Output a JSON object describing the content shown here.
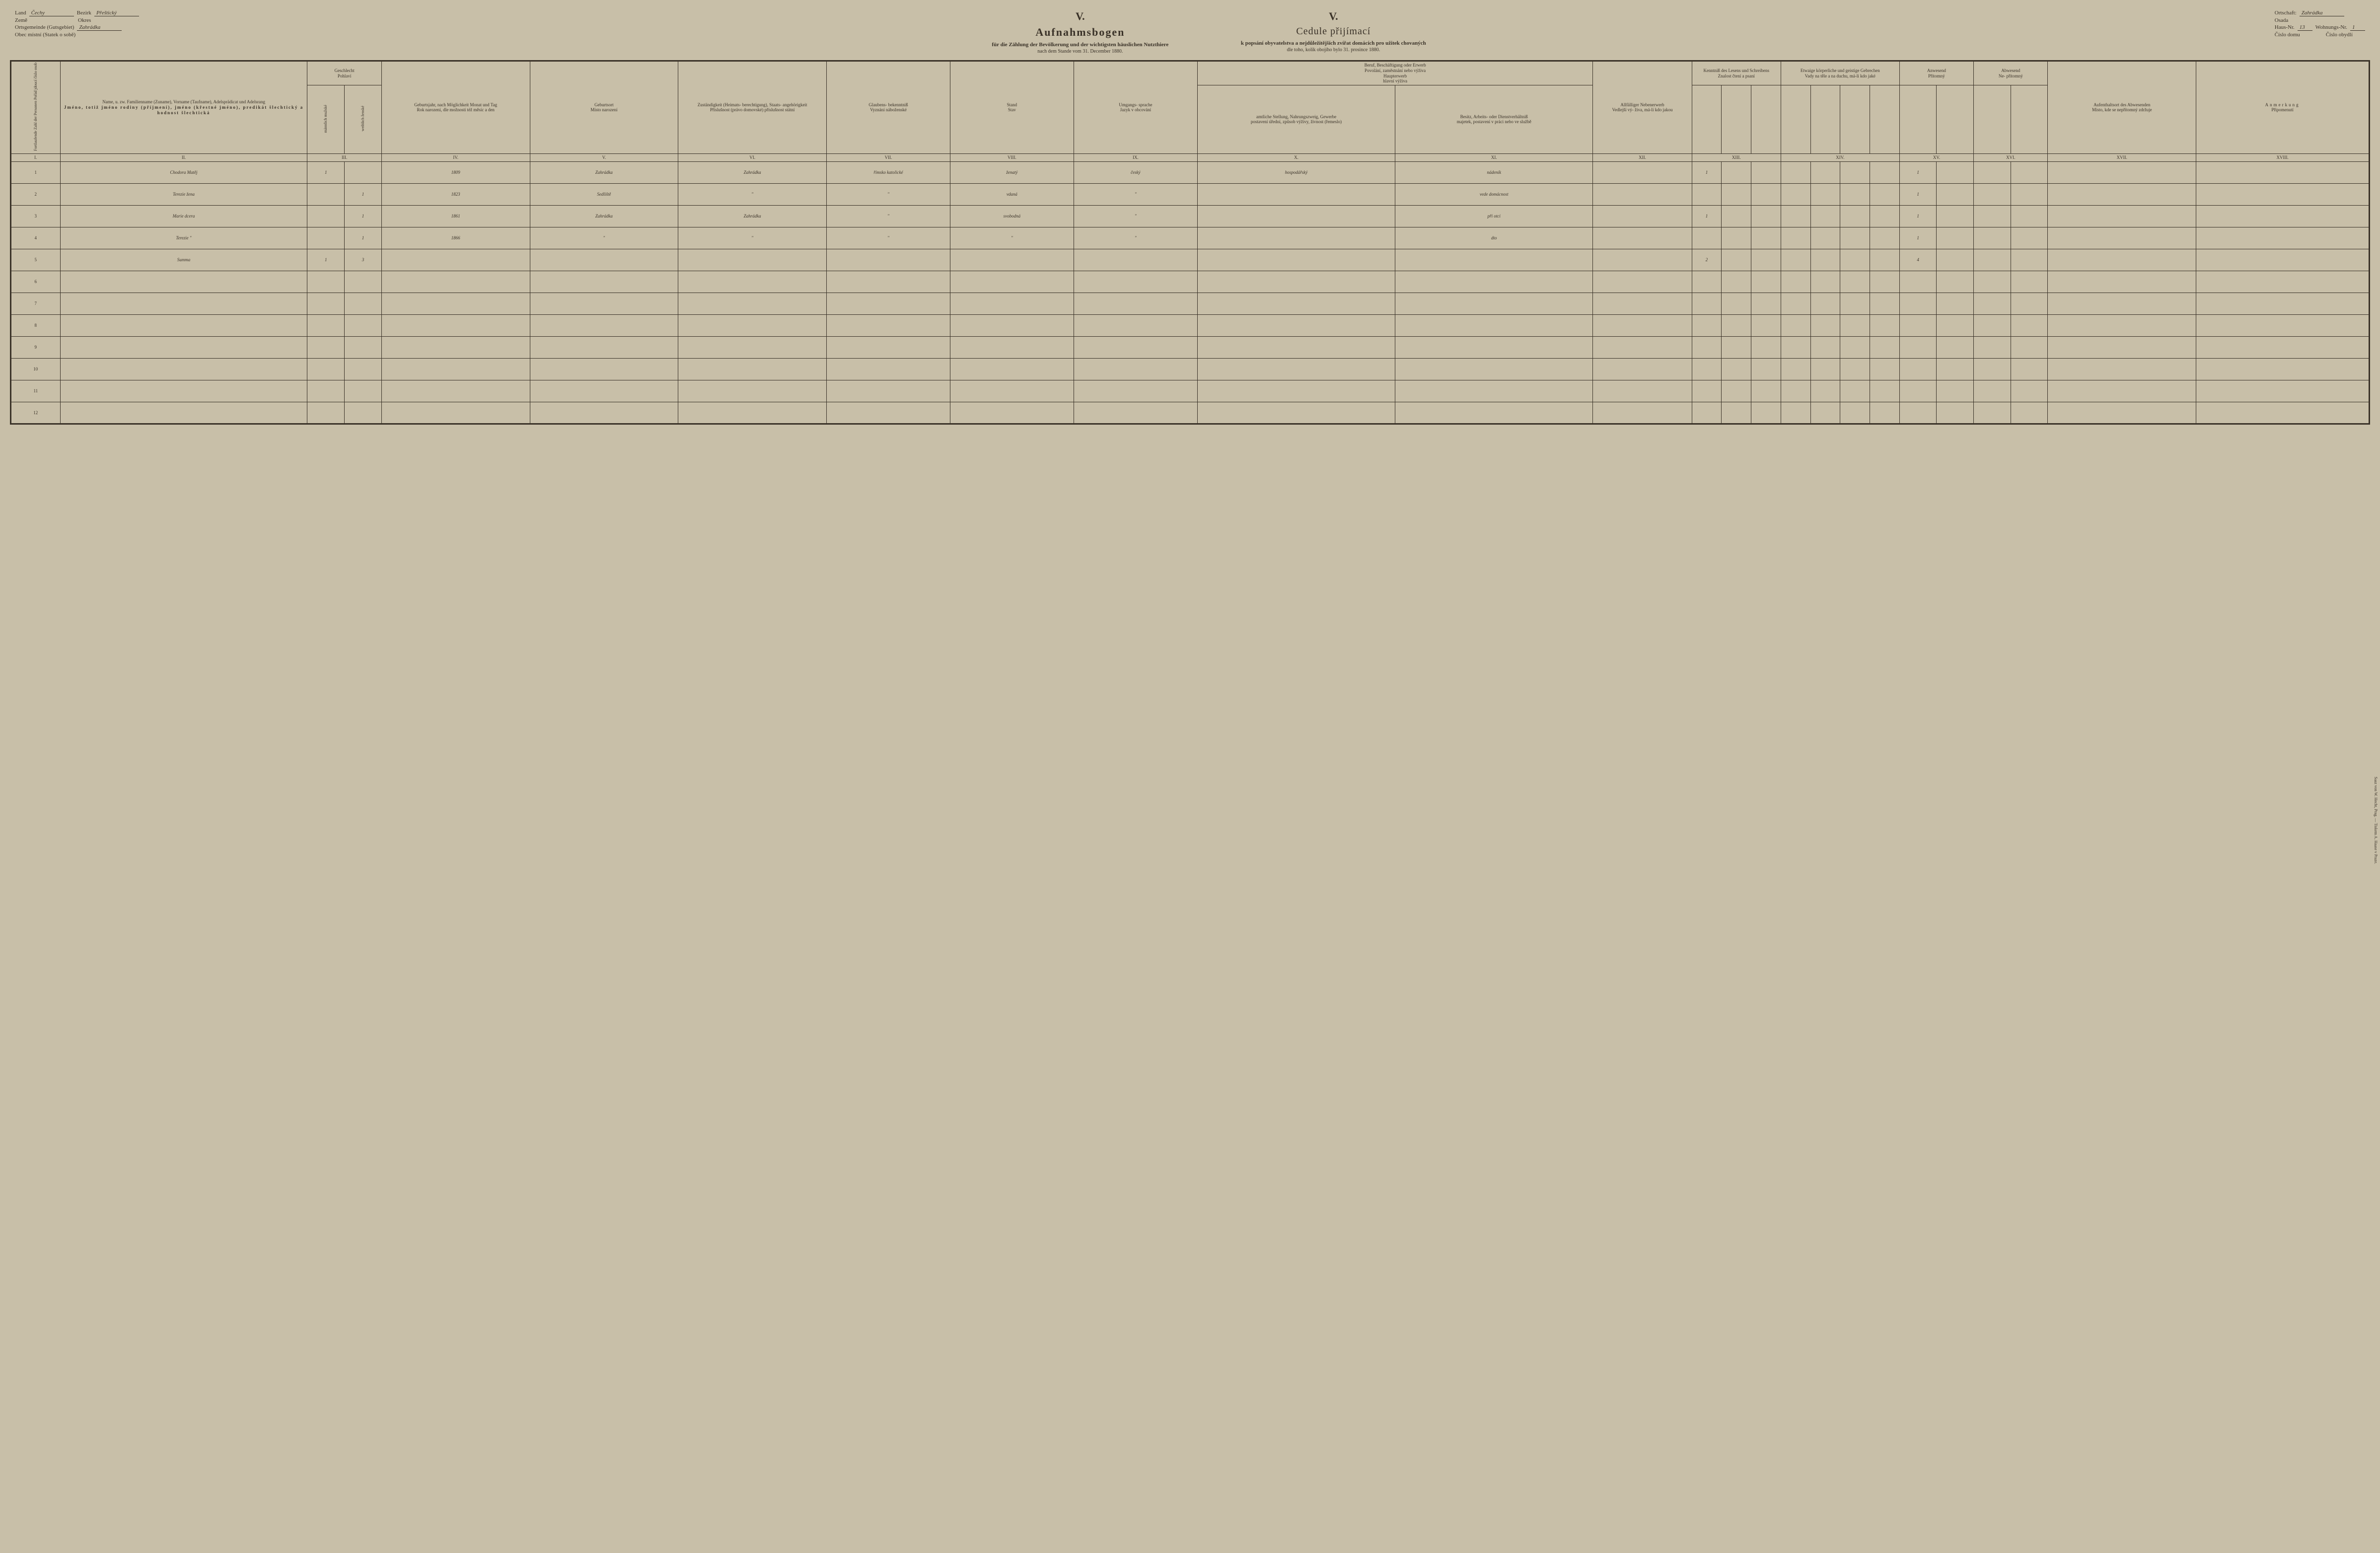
{
  "header": {
    "left": {
      "land_de": "Land",
      "land_cz": "Země",
      "land_val": "Čechy",
      "bezirk_de": "Bezirk",
      "bezirk_cz": "Okres",
      "bezirk_val": "Přeštický",
      "ort_de": "Ortsgemeinde (Gutsgebiet)",
      "ort_cz": "Obec místní (Statek o sobě)",
      "ort_val": "Zahrádka"
    },
    "right": {
      "ortschaft_de": "Ortschaft:",
      "ortschaft_cz": "Osada",
      "ortschaft_val": "Zahrádka",
      "haus_de": "Haus-Nr.",
      "haus_cz": "Číslo domu",
      "haus_val": "13",
      "wohn_de": "Wohnungs-Nr.",
      "wohn_cz": "Číslo obydlí",
      "wohn_val": "1"
    },
    "center_de": {
      "roman": "V.",
      "title": "Aufnahmsbogen",
      "sub1": "für die Zählung der Bevölkerung und der wichtigsten häuslichen Nutzthiere",
      "sub2": "nach dem Stande vom 31. December 1880."
    },
    "center_cz": {
      "roman": "V.",
      "title": "Cedule přijímací",
      "sub1": "k popsání obyvatelstva a nejdůležitějších zvířat domácích pro užitek chovaných",
      "sub2": "dle toho, kolik obojího bylo 31. prosince 1880."
    }
  },
  "columns": {
    "c1": "Fortlaufende Zahl der Personen\nPořád jdoucí číslo osob",
    "c2_de": "Name,\nu. zw. Familienname\n(Zuname), Vorname\n(Taufname), Adelsprädicat\nund Adelsrang",
    "c2_cz": "Jméno,\ntotiž jméno rodiny\n(příjmení), jméno (křestné\njméno), predikát šlechtický\na hodnost šlechtická",
    "c3_de": "Geschlecht",
    "c3_cz": "Pohlaví",
    "c3a": "männlich\nmužské",
    "c3b": "weiblich\nženské",
    "c4_de": "Geburtsjahr,\nnach\nMöglichkeit\nMonat und Tag",
    "c4_cz": "Rok narození,\ndle\nmožnosti\ntéž měsíc a den",
    "c5_de": "Geburtsort",
    "c5_cz": "Místo narození",
    "c6_de": "Zuständigkeit\n(Heimats-\nberechtigung),\nStaats-\nangehörigkeit",
    "c6_cz": "Příslušnost\n(právo\ndomovské)\npříslušnost\nstátní",
    "c7_de": "Glaubens-\nbekenntniß",
    "c7_cz": "Vyznání\nnáboženské",
    "c8_de": "Stand",
    "c8_cz": "Stav",
    "c9_de": "Umgangs-\nsprache",
    "c9_cz": "Jazyk\nv obcování",
    "c10_hdr_de": "Beruf, Beschäftigung oder Erwerb",
    "c10_hdr_cz": "Povolání, zaměstnání nebo výživa",
    "c10_sub_de": "Haupterwerb",
    "c10_sub_cz": "hlavní výživa",
    "c10a_de": "amtliche Stellung,\nNahrungszweig,\nGewerbe",
    "c10a_cz": "postavení úřední,\nzpůsob výživy,\nživnost (řemeslo)",
    "c11_de": "Besitz, Arbeits-\noder Dienstverhältniß",
    "c11_cz": "majetek, postavení\nv práci nebo ve službě",
    "c12_de": "Allfälliger\nNebenerwerb",
    "c12_cz": "Vedlejší vý-\nživa, má-li\nkdo jakou",
    "c13_de": "Kenntniß des\nLesens und\nSchreibens",
    "c13_cz": "Znalost čtení\na psaní",
    "c14_de": "Etwaige körperliche\nund geistige Gebrechen",
    "c14_cz": "Vady na těle a na\nduchu, má-li kdo jaké",
    "c15_de": "Anwesend",
    "c15_cz": "Přítomný",
    "c16_de": "Abwesend",
    "c16_cz": "Ne-\npřítomný",
    "c17_de": "Aufenthaltsort\ndes\nAbwesenden",
    "c17_cz": "Místo, kde se\nnepřítomný\nzdržuje",
    "c18_de": "Anmerkung",
    "c18_cz": "Připomenutí",
    "r1": "I.",
    "r2": "II.",
    "r3": "III.",
    "r4": "IV.",
    "r5": "V.",
    "r6": "VI.",
    "r7": "VII.",
    "r8": "VIII.",
    "r9": "IX.",
    "r10": "X.",
    "r11": "XI.",
    "r12": "XII.",
    "r13": "XIII.",
    "r14": "XIV.",
    "r15": "XV.",
    "r16": "XVI.",
    "r17": "XVII.",
    "r18": "XVIII."
  },
  "rows": [
    {
      "n": "1",
      "name": "Chodora Matěj",
      "m": "1",
      "f": "",
      "yr": "1809",
      "born": "Zahrádka",
      "zust": "Zahrádka",
      "rel": "římsko katolické",
      "stand": "ženatý",
      "lang": "český",
      "occ": "hospodářský",
      "pos": "nádeník",
      "read": "1",
      "pres": "1"
    },
    {
      "n": "2",
      "name": "Terezie žena",
      "m": "",
      "f": "1",
      "yr": "1823",
      "born": "Sedliště",
      "zust": "\"",
      "rel": "\"",
      "stand": "vdaná",
      "lang": "\"",
      "occ": "",
      "pos": "vede domácnost",
      "read": "",
      "pres": "1"
    },
    {
      "n": "3",
      "name": "Marie dcera",
      "m": "",
      "f": "1",
      "yr": "1861",
      "born": "Zahrádka",
      "zust": "Zahrádka",
      "rel": "\"",
      "stand": "svobodná",
      "lang": "\"",
      "occ": "",
      "pos": "při otci",
      "read": "1",
      "pres": "1"
    },
    {
      "n": "4",
      "name": "Terezie \"",
      "m": "",
      "f": "1",
      "yr": "1866",
      "born": "\"",
      "zust": "\"",
      "rel": "\"",
      "stand": "\"",
      "lang": "\"",
      "occ": "",
      "pos": "dto",
      "read": "",
      "pres": "1"
    },
    {
      "n": "5",
      "name": "Summa",
      "m": "1",
      "f": "3",
      "yr": "",
      "born": "",
      "zust": "",
      "rel": "",
      "stand": "",
      "lang": "",
      "occ": "",
      "pos": "",
      "read": "2",
      "pres": "4"
    },
    {
      "n": "6"
    },
    {
      "n": "7"
    },
    {
      "n": "8"
    },
    {
      "n": "9"
    },
    {
      "n": "10"
    },
    {
      "n": "11"
    },
    {
      "n": "12"
    }
  ],
  "credit": "Saaz von W. Hecht, Prag. — Tiskem A. Haase v Praze."
}
